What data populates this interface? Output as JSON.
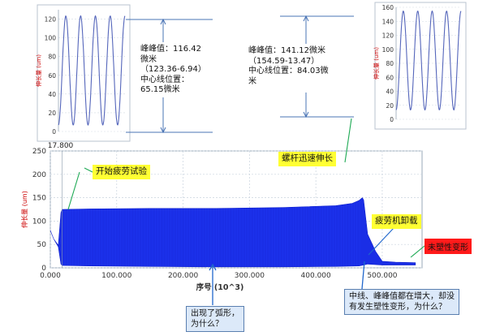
{
  "chart_data": [
    {
      "type": "area",
      "role": "main",
      "xlabel": "序号 (10^3)",
      "ylabel": "伸长量 (um)",
      "xlim": [
        0,
        560
      ],
      "ylim": [
        0,
        250
      ],
      "xticks": [
        "0.000",
        "100.000",
        "200.000",
        "300.000",
        "400.000",
        "500.000"
      ],
      "yticks": [
        "0",
        "50",
        "100",
        "150",
        "200",
        "250"
      ],
      "grid": true,
      "color": "#1a2ee6",
      "upper_envelope": [
        [
          0,
          80
        ],
        [
          5,
          62
        ],
        [
          12,
          48
        ],
        [
          16,
          118
        ],
        [
          17.8,
          125
        ],
        [
          60,
          126
        ],
        [
          150,
          127
        ],
        [
          250,
          127
        ],
        [
          350,
          129
        ],
        [
          430,
          133
        ],
        [
          455,
          138
        ],
        [
          465,
          144
        ],
        [
          470,
          150
        ],
        [
          472,
          145
        ],
        [
          478,
          72
        ],
        [
          490,
          35
        ],
        [
          500,
          14
        ],
        [
          520,
          12
        ],
        [
          550,
          11
        ]
      ],
      "lower_envelope": [
        [
          0,
          80
        ],
        [
          5,
          62
        ],
        [
          12,
          45
        ],
        [
          16,
          8
        ],
        [
          17.8,
          5
        ],
        [
          60,
          4
        ],
        [
          150,
          3
        ],
        [
          250,
          2
        ],
        [
          350,
          2
        ],
        [
          430,
          3
        ],
        [
          465,
          4
        ],
        [
          472,
          6
        ],
        [
          478,
          8
        ],
        [
          500,
          6
        ],
        [
          550,
          6
        ]
      ],
      "marker_label": "17.800"
    },
    {
      "type": "line",
      "role": "inset-left",
      "ylabel": "伸长量 (um)",
      "ylim": [
        0,
        130
      ],
      "yticks": [
        "0",
        "20",
        "40",
        "60",
        "80",
        "100",
        "120"
      ],
      "center": 65.15,
      "amplitude": 58.2,
      "cycles": 4.5,
      "color": "#5566bb"
    },
    {
      "type": "line",
      "role": "inset-right",
      "ylabel": "伸长量 (um)",
      "ylim": [
        0,
        160
      ],
      "yticks": [
        "0",
        "20",
        "40",
        "60",
        "80",
        "100",
        "120",
        "140",
        "160"
      ],
      "center": 84.03,
      "amplitude": 70.56,
      "cycles": 4.5,
      "color": "#5566bb"
    }
  ],
  "annotations": {
    "left_measure": [
      "峰峰值：116.42",
      "微米",
      "（123.36-6.94）",
      "中心线位置：",
      "65.15微米"
    ],
    "right_measure": [
      "峰峰值：141.12微米",
      "（154.59-13.47）",
      "中心线位置：84.03微",
      "米"
    ],
    "start_label": "开始疲劳试验",
    "stretch_label": "螺杆迅速伸长",
    "unload_label": "疲劳机卸载",
    "plastic_label": "未塑性变形",
    "arc_question": [
      "出现了弧形，",
      "为什么？"
    ],
    "no_plastic_question": [
      "中线、峰峰值都在增大，却没",
      "有发生塑性变形，为什么？"
    ]
  }
}
